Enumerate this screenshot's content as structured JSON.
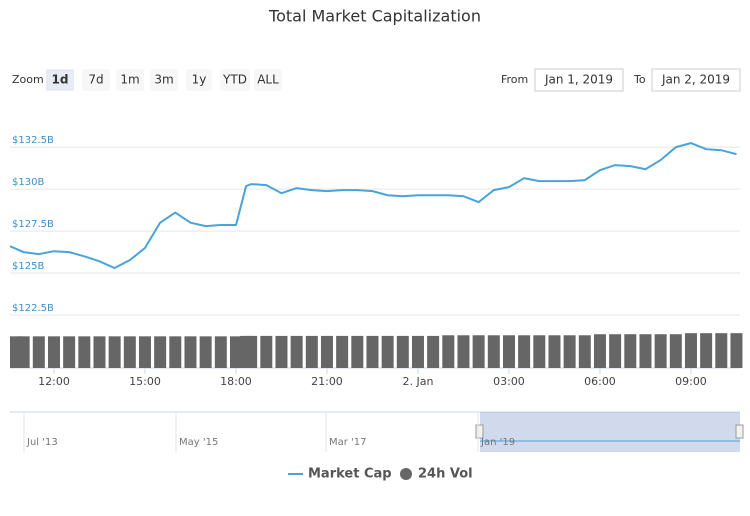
{
  "chart_data": {
    "type": "line",
    "title": "Total Market Capitalization",
    "range_selector": {
      "label": "Zoom",
      "buttons": [
        "1d",
        "7d",
        "1m",
        "3m",
        "1y",
        "YTD",
        "ALL"
      ],
      "selected": 0,
      "from_label": "From",
      "from": "Jan 1, 2019",
      "to_label": "To",
      "to": "Jan 2, 2019"
    },
    "x": [
      "2019-01-01T10:33",
      "2019-01-01T11:00",
      "2019-01-01T11:30",
      "2019-01-01T12:00",
      "2019-01-01T12:30",
      "2019-01-01T13:00",
      "2019-01-01T13:30",
      "2019-01-01T14:00",
      "2019-01-01T14:30",
      "2019-01-01T15:00",
      "2019-01-01T15:30",
      "2019-01-01T16:00",
      "2019-01-01T16:30",
      "2019-01-01T17:00",
      "2019-01-01T17:30",
      "2019-01-01T18:00",
      "2019-01-01T18:20",
      "2019-01-01T18:30",
      "2019-01-01T19:00",
      "2019-01-01T19:30",
      "2019-01-01T20:00",
      "2019-01-01T20:30",
      "2019-01-01T21:00",
      "2019-01-01T21:30",
      "2019-01-01T22:00",
      "2019-01-01T22:30",
      "2019-01-01T23:00",
      "2019-01-01T23:30",
      "2019-01-02T00:00",
      "2019-01-02T00:30",
      "2019-01-02T01:00",
      "2019-01-02T01:30",
      "2019-01-02T02:00",
      "2019-01-02T02:30",
      "2019-01-02T03:00",
      "2019-01-02T03:30",
      "2019-01-02T04:00",
      "2019-01-02T04:30",
      "2019-01-02T05:00",
      "2019-01-02T05:30",
      "2019-01-02T06:00",
      "2019-01-02T06:30",
      "2019-01-02T07:00",
      "2019-01-02T07:30",
      "2019-01-02T08:00",
      "2019-01-02T08:30",
      "2019-01-02T09:00",
      "2019-01-02T09:30",
      "2019-01-02T10:00",
      "2019-01-02T10:30"
    ],
    "series": [
      {
        "name": "Market Cap",
        "type": "line",
        "color": "#4aa3d8",
        "values": [
          126.6,
          126.25,
          126.13,
          126.3,
          126.25,
          126.0,
          125.7,
          125.3,
          125.77,
          126.5,
          128.0,
          128.6,
          128.0,
          127.8,
          127.86,
          127.86,
          130.18,
          130.3,
          130.24,
          129.76,
          130.06,
          129.94,
          129.88,
          129.94,
          129.94,
          129.88,
          129.64,
          129.58,
          129.64,
          129.64,
          129.64,
          129.58,
          129.23,
          129.94,
          130.12,
          130.65,
          130.48,
          130.48,
          130.48,
          130.54,
          131.13,
          131.43,
          131.37,
          131.19,
          131.73,
          132.5,
          132.74,
          132.38,
          132.32,
          132.08
        ]
      },
      {
        "name": "24h Vol",
        "type": "bar",
        "axis": "y2",
        "color": "#666666",
        "values": [
          15.0,
          15.0,
          15.0,
          15.0,
          15.0,
          15.0,
          15.0,
          15.0,
          15.0,
          15.0,
          15.0,
          15.0,
          15.0,
          15.0,
          15.0,
          15.0,
          15.2,
          15.2,
          15.2,
          15.2,
          15.2,
          15.2,
          15.2,
          15.2,
          15.2,
          15.2,
          15.2,
          15.2,
          15.2,
          15.2,
          15.5,
          15.5,
          15.5,
          15.5,
          15.5,
          15.5,
          15.5,
          15.5,
          15.5,
          15.5,
          16.0,
          16.0,
          16.0,
          16.0,
          16.0,
          16.0,
          16.5,
          16.5,
          16.5,
          16.5
        ]
      }
    ],
    "xlim": [
      "2019-01-01T10:33",
      "2019-01-02T10:37"
    ],
    "xticks": [
      {
        "value": "2019-01-01T12:00",
        "label": "12:00"
      },
      {
        "value": "2019-01-01T15:00",
        "label": "15:00"
      },
      {
        "value": "2019-01-01T18:00",
        "label": "18:00"
      },
      {
        "value": "2019-01-01T21:00",
        "label": "21:00"
      },
      {
        "value": "2019-01-02T00:00",
        "label": "2. Jan"
      },
      {
        "value": "2019-01-02T03:00",
        "label": "03:00"
      },
      {
        "value": "2019-01-02T06:00",
        "label": "06:00"
      },
      {
        "value": "2019-01-02T09:00",
        "label": "09:00"
      }
    ],
    "ylim": [
      122.5,
      134
    ],
    "yticks": [
      {
        "value": 122.5,
        "label": "$122.5B"
      },
      {
        "value": 125,
        "label": "$125B"
      },
      {
        "value": 127.5,
        "label": "$127.5B"
      },
      {
        "value": 130,
        "label": "$130B"
      },
      {
        "value": 132.5,
        "label": "$132.5B"
      }
    ],
    "y2lim": [
      0,
      18
    ],
    "grid": true,
    "navigator_labels": [
      "Jul '13",
      "May '15",
      "Mar '17",
      "Jan '19"
    ]
  }
}
